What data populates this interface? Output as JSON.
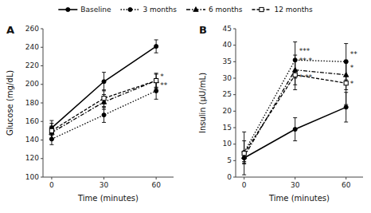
{
  "chart_data": [
    {
      "type": "line",
      "title": "A",
      "x": [
        0,
        30,
        60
      ],
      "xlim": [
        -5,
        70
      ],
      "xticks": [
        0,
        30,
        60
      ],
      "ylim": [
        100,
        260
      ],
      "yticks": [
        100,
        120,
        140,
        160,
        180,
        200,
        220,
        240,
        260
      ],
      "xlabel": "Time (minutes)",
      "ylabel": "Glucose (mg/dL)",
      "grid": false,
      "legend": "top",
      "series": [
        {
          "name": "Baseline",
          "color": "#000000",
          "marker": "circle",
          "line_style": "solid",
          "values": [
            153,
            203,
            241
          ],
          "errors": [
            8,
            10,
            7
          ]
        },
        {
          "name": "3 months",
          "color": "#000000",
          "marker": "circle",
          "line_style": "dotted",
          "values": [
            141,
            167,
            193
          ],
          "errors": [
            6,
            8,
            9
          ]
        },
        {
          "name": "6 months",
          "color": "#000000",
          "marker": "triangle",
          "line_style": "dashdot",
          "values": [
            148,
            181,
            204
          ],
          "errors": [
            7,
            8,
            7
          ]
        },
        {
          "name": "12 months",
          "color": "#000000",
          "marker": "open-square",
          "line_style": "dashed",
          "values": [
            150,
            185,
            204
          ],
          "errors": [
            8,
            9,
            8
          ]
        }
      ],
      "annotations": [
        {
          "text": "*",
          "x": 60,
          "y": 206
        },
        {
          "text": "**",
          "x": 60,
          "y": 196
        }
      ]
    },
    {
      "type": "line",
      "title": "B",
      "x": [
        0,
        30,
        60
      ],
      "xlim": [
        -5,
        70
      ],
      "xticks": [
        0,
        30,
        60
      ],
      "ylim": [
        0,
        45
      ],
      "yticks": [
        0,
        5,
        10,
        15,
        20,
        25,
        30,
        35,
        40,
        45
      ],
      "xlabel": "Time (minutes)",
      "ylabel": "Insulin (μU/mL)",
      "grid": false,
      "series": [
        {
          "color": "#000000",
          "marker": "circle",
          "line_style": "solid",
          "values": [
            5.8,
            14.5,
            21.2
          ],
          "errors": [
            1.5,
            3.5,
            4.5
          ]
        },
        {
          "color": "#000000",
          "marker": "circle",
          "line_style": "dotted",
          "values": [
            7.5,
            35.5,
            35.0
          ],
          "errors": [
            3.5,
            5.5,
            5.5
          ]
        },
        {
          "color": "#000000",
          "marker": "triangle",
          "line_style": "dashdot",
          "values": [
            6.2,
            32.5,
            31.0
          ],
          "errors": [
            1.5,
            4.5,
            4.5
          ]
        },
        {
          "color": "#000000",
          "marker": "open-square",
          "line_style": "dashed",
          "values": [
            7.2,
            31.0,
            28.5
          ],
          "errors": [
            6.5,
            4.5,
            6.5
          ]
        }
      ],
      "annotations": [
        {
          "text": "***",
          "x": 30,
          "y": 37.5
        },
        {
          "text": "** *",
          "x": 30,
          "y": 34.5
        },
        {
          "text": "* **",
          "x": 30,
          "y": 29.5
        },
        {
          "text": "**",
          "x": 60,
          "y": 36.5
        },
        {
          "text": "*",
          "x": 60,
          "y": 32.5
        },
        {
          "text": "*",
          "x": 60,
          "y": 27.5
        }
      ]
    }
  ]
}
